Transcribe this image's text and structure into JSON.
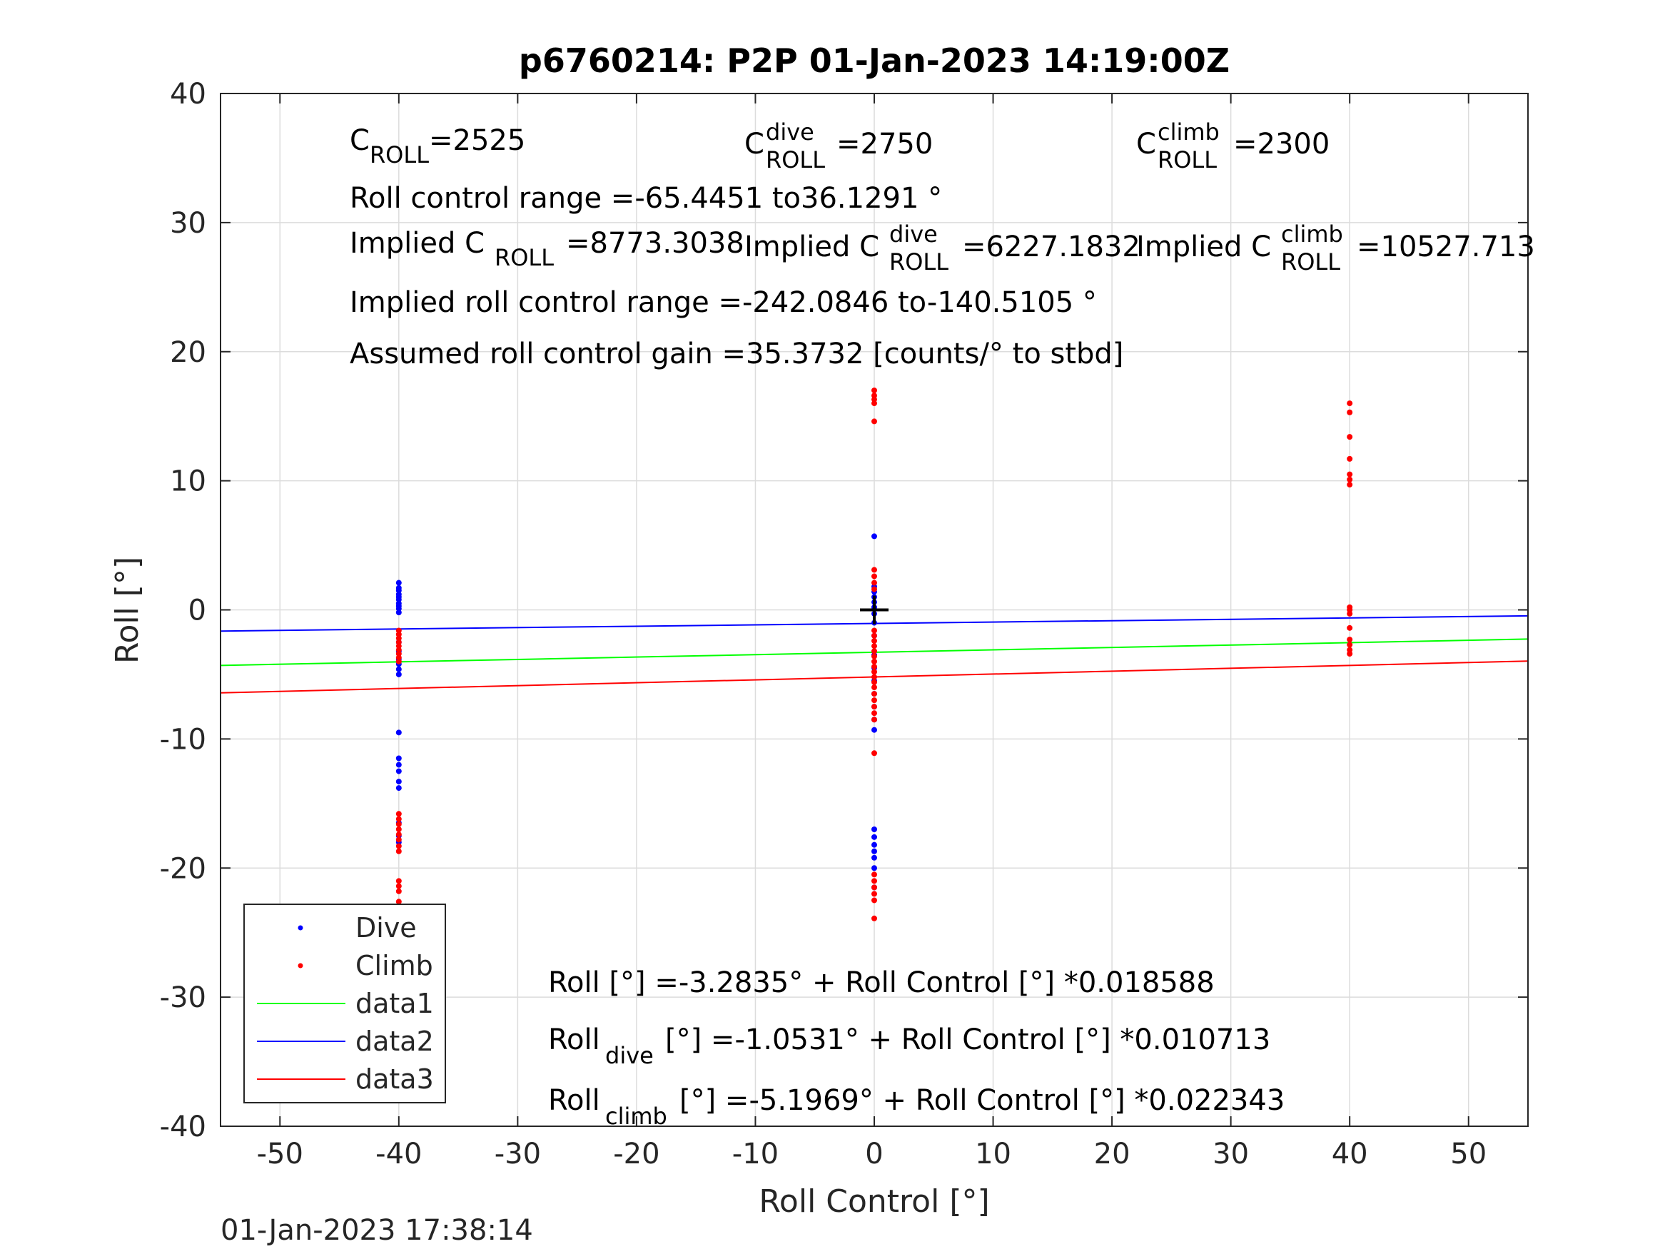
{
  "chart_data": {
    "type": "scatter",
    "title": "p6760214: P2P 01-Jan-2023 14:19:00Z",
    "xlabel": "Roll Control [°]",
    "ylabel": "Roll [°]",
    "xlim": [
      -55,
      55
    ],
    "ylim": [
      -40,
      40
    ],
    "xticks": [
      -50,
      -40,
      -30,
      -20,
      -10,
      0,
      10,
      20,
      30,
      40,
      50
    ],
    "yticks": [
      -40,
      -30,
      -20,
      -10,
      0,
      10,
      20,
      30,
      40
    ],
    "grid": true,
    "legend_position": "bottom-left",
    "timestamp": "01-Jan-2023 17:38:14",
    "center_marker": {
      "x": 0,
      "y": 0,
      "symbol": "+"
    },
    "series": [
      {
        "name": "Dive",
        "kind": "points",
        "color": "#0000ff",
        "points": [
          [
            -40,
            2.1
          ],
          [
            -40,
            1.7
          ],
          [
            -40,
            1.5
          ],
          [
            -40,
            1.2
          ],
          [
            -40,
            1.0
          ],
          [
            -40,
            0.8
          ],
          [
            -40,
            0.5
          ],
          [
            -40,
            0.3
          ],
          [
            -40,
            0.1
          ],
          [
            -40,
            -0.2
          ],
          [
            -40,
            -2.5
          ],
          [
            -40,
            -3.2
          ],
          [
            -40,
            -3.8
          ],
          [
            -40,
            -4.2
          ],
          [
            -40,
            -4.6
          ],
          [
            -40,
            -5.0
          ],
          [
            -40,
            -9.5
          ],
          [
            -40,
            -11.5
          ],
          [
            -40,
            -12.0
          ],
          [
            -40,
            -12.5
          ],
          [
            -40,
            -13.3
          ],
          [
            -40,
            -13.8
          ],
          [
            -40,
            -16.5
          ],
          [
            -40,
            -17.5
          ],
          [
            -40,
            -18.0
          ],
          [
            0,
            5.7
          ],
          [
            0,
            1.8
          ],
          [
            0,
            1.4
          ],
          [
            0,
            1.0
          ],
          [
            0,
            0.6
          ],
          [
            0,
            0.2
          ],
          [
            0,
            -0.3
          ],
          [
            0,
            -1.0
          ],
          [
            0,
            -2.0
          ],
          [
            0,
            -3.5
          ],
          [
            0,
            -4.5
          ],
          [
            0,
            -5.5
          ],
          [
            0,
            -6.5
          ],
          [
            0,
            -7.5
          ],
          [
            0,
            -8.5
          ],
          [
            0,
            -9.3
          ],
          [
            0,
            -17.0
          ],
          [
            0,
            -17.6
          ],
          [
            0,
            -18.2
          ],
          [
            0,
            -18.7
          ],
          [
            0,
            -19.2
          ],
          [
            0,
            -20.0
          ],
          [
            0,
            -21.5
          ]
        ]
      },
      {
        "name": "Climb",
        "kind": "points",
        "color": "#ff0000",
        "points": [
          [
            -40,
            -1.6
          ],
          [
            -40,
            -1.9
          ],
          [
            -40,
            -2.2
          ],
          [
            -40,
            -2.5
          ],
          [
            -40,
            -2.8
          ],
          [
            -40,
            -3.1
          ],
          [
            -40,
            -3.4
          ],
          [
            -40,
            -3.7
          ],
          [
            -40,
            -4.0
          ],
          [
            -40,
            -15.8
          ],
          [
            -40,
            -16.2
          ],
          [
            -40,
            -16.6
          ],
          [
            -40,
            -17.0
          ],
          [
            -40,
            -17.4
          ],
          [
            -40,
            -17.8
          ],
          [
            -40,
            -18.3
          ],
          [
            -40,
            -18.7
          ],
          [
            -40,
            -21.0
          ],
          [
            -40,
            -21.4
          ],
          [
            -40,
            -21.8
          ],
          [
            -40,
            -22.6
          ],
          [
            0,
            17.0
          ],
          [
            0,
            16.6
          ],
          [
            0,
            16.3
          ],
          [
            0,
            16.0
          ],
          [
            0,
            14.6
          ],
          [
            0,
            3.1
          ],
          [
            0,
            2.6
          ],
          [
            0,
            2.1
          ],
          [
            0,
            1.6
          ],
          [
            0,
            -1.6
          ],
          [
            0,
            -2.0
          ],
          [
            0,
            -2.4
          ],
          [
            0,
            -2.8
          ],
          [
            0,
            -3.2
          ],
          [
            0,
            -3.6
          ],
          [
            0,
            -4.0
          ],
          [
            0,
            -4.4
          ],
          [
            0,
            -4.8
          ],
          [
            0,
            -5.2
          ],
          [
            0,
            -5.6
          ],
          [
            0,
            -6.0
          ],
          [
            0,
            -6.5
          ],
          [
            0,
            -7.0
          ],
          [
            0,
            -7.5
          ],
          [
            0,
            -8.0
          ],
          [
            0,
            -8.5
          ],
          [
            0,
            -11.1
          ],
          [
            0,
            -20.5
          ],
          [
            0,
            -21.0
          ],
          [
            0,
            -21.5
          ],
          [
            0,
            -22.0
          ],
          [
            0,
            -22.5
          ],
          [
            0,
            -23.9
          ],
          [
            40,
            16.0
          ],
          [
            40,
            15.3
          ],
          [
            40,
            13.4
          ],
          [
            40,
            11.7
          ],
          [
            40,
            10.5
          ],
          [
            40,
            10.1
          ],
          [
            40,
            9.7
          ],
          [
            40,
            0.2
          ],
          [
            40,
            0.0
          ],
          [
            40,
            -0.3
          ],
          [
            40,
            -1.4
          ],
          [
            40,
            -2.3
          ],
          [
            40,
            -2.7
          ],
          [
            40,
            -3.1
          ],
          [
            40,
            -3.4
          ]
        ]
      },
      {
        "name": "data1",
        "kind": "line",
        "color": "#00ff00",
        "x": [
          -55,
          55
        ],
        "y": [
          -4.3059,
          -2.2611
        ]
      },
      {
        "name": "data2",
        "kind": "line",
        "color": "#0000ff",
        "x": [
          -55,
          55
        ],
        "y": [
          -1.6423,
          -0.4639
        ]
      },
      {
        "name": "data3",
        "kind": "line",
        "color": "#ff0000",
        "x": [
          -55,
          55
        ],
        "y": [
          -6.4258,
          -3.968
        ]
      }
    ],
    "annotations": {
      "c_roll": {
        "base": "C",
        "sub": "ROLL",
        "value": "=2525"
      },
      "c_roll_dive": {
        "base": "C",
        "sup": "dive",
        "sub": "ROLL",
        "value": "=2750"
      },
      "c_roll_climb": {
        "base": "C",
        "sup": "climb",
        "sub": "ROLL",
        "value": "=2300"
      },
      "roll_range": "Roll control range =-65.4451 to36.1291 °",
      "implied_c_roll": {
        "prefix": "Implied C",
        "sub": "ROLL",
        "value": "=8773.3038"
      },
      "implied_c_roll_dive": {
        "prefix": "Implied C",
        "sup": "dive",
        "sub": "ROLL",
        "value": "=6227.1832"
      },
      "implied_c_roll_climb": {
        "prefix": "Implied C",
        "sup": "climb",
        "sub": "ROLL",
        "value": "=10527.713"
      },
      "implied_range": "Implied roll control range =-242.0846 to-140.5105 °",
      "gain": "Assumed roll control gain =35.3732 [counts/° to stbd]",
      "fit_all": {
        "base": "Roll",
        "rest": "[°] =-3.2835° + Roll Control [°] *0.018588"
      },
      "fit_dive": {
        "base": "Roll",
        "sub": "dive",
        "rest": "[°] =-1.0531° + Roll Control [°] *0.010713"
      },
      "fit_climb": {
        "base": "Roll",
        "sub": "climb",
        "rest": "[°] =-5.1969° + Roll Control [°] *0.022343"
      }
    }
  }
}
